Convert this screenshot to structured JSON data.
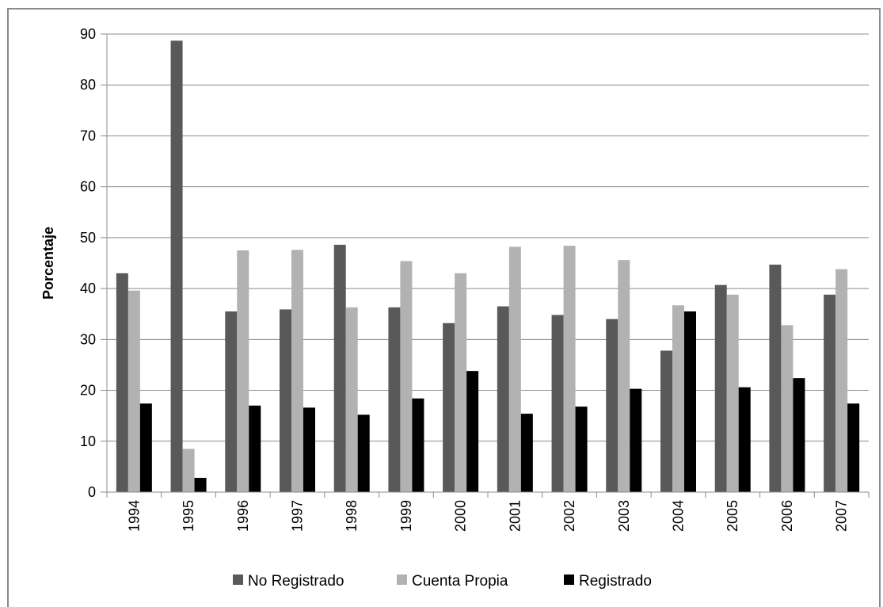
{
  "chart_data": {
    "type": "bar",
    "title": "",
    "xlabel": "",
    "ylabel": "Porcentaje",
    "ylim": [
      0,
      90
    ],
    "yticks": [
      0,
      10,
      20,
      30,
      40,
      50,
      60,
      70,
      80,
      90
    ],
    "grid": true,
    "legend_position": "bottom",
    "categories": [
      "1994",
      "1995",
      "1996",
      "1997",
      "1998",
      "1999",
      "2000",
      "2001",
      "2002",
      "2003",
      "2004",
      "2005",
      "2006",
      "2007"
    ],
    "series": [
      {
        "name": "No Registrado",
        "color": "#595959",
        "values": [
          43.0,
          88.7,
          35.5,
          35.9,
          48.6,
          36.3,
          33.2,
          36.5,
          34.8,
          34.0,
          27.8,
          40.7,
          44.7,
          38.8
        ]
      },
      {
        "name": "Cuenta Propia",
        "color": "#b2b2b2",
        "values": [
          39.6,
          8.5,
          47.5,
          47.6,
          36.3,
          45.4,
          43.0,
          48.2,
          48.4,
          45.6,
          36.7,
          38.8,
          32.8,
          43.8
        ]
      },
      {
        "name": "Registrado",
        "color": "#000000",
        "values": [
          17.4,
          2.8,
          17.0,
          16.6,
          15.2,
          18.4,
          23.8,
          15.4,
          16.8,
          20.3,
          35.5,
          20.6,
          22.4,
          17.4
        ]
      }
    ]
  }
}
